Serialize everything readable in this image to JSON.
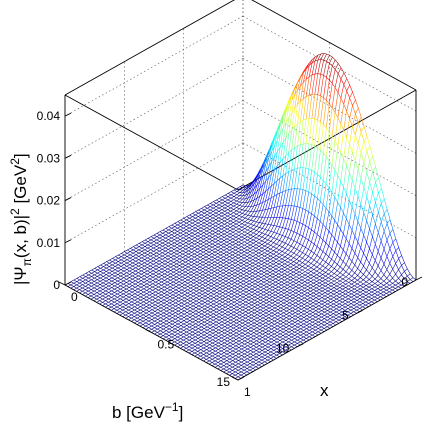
{
  "chart_data": {
    "type": "surface3d",
    "title": "",
    "zlabel_main": "|Ψ",
    "zlabel_sub": "π",
    "zlabel_mid": "(x, b)|",
    "zlabel_sup": "2",
    "zlabel_unit": " [GeV",
    "zlabel_unit_sup": "2",
    "zlabel_close": "]",
    "xlabel": "x",
    "blabel_main": "b [GeV",
    "blabel_sup": "−1",
    "blabel_close": "]",
    "zlim": [
      0,
      0.045
    ],
    "xlim": [
      0,
      1
    ],
    "blim": [
      0,
      15
    ],
    "z_ticks": [
      "0",
      "0.01",
      "0.02",
      "0.03",
      "0.04"
    ],
    "x_ticks": [
      "0",
      "0.5",
      "1"
    ],
    "b_ticks": [
      "0",
      "5",
      "10",
      "15"
    ],
    "colormap": "jet",
    "peak_value": 0.042,
    "peak_at": {
      "x": 0.5,
      "b": 0
    },
    "grid": true
  }
}
